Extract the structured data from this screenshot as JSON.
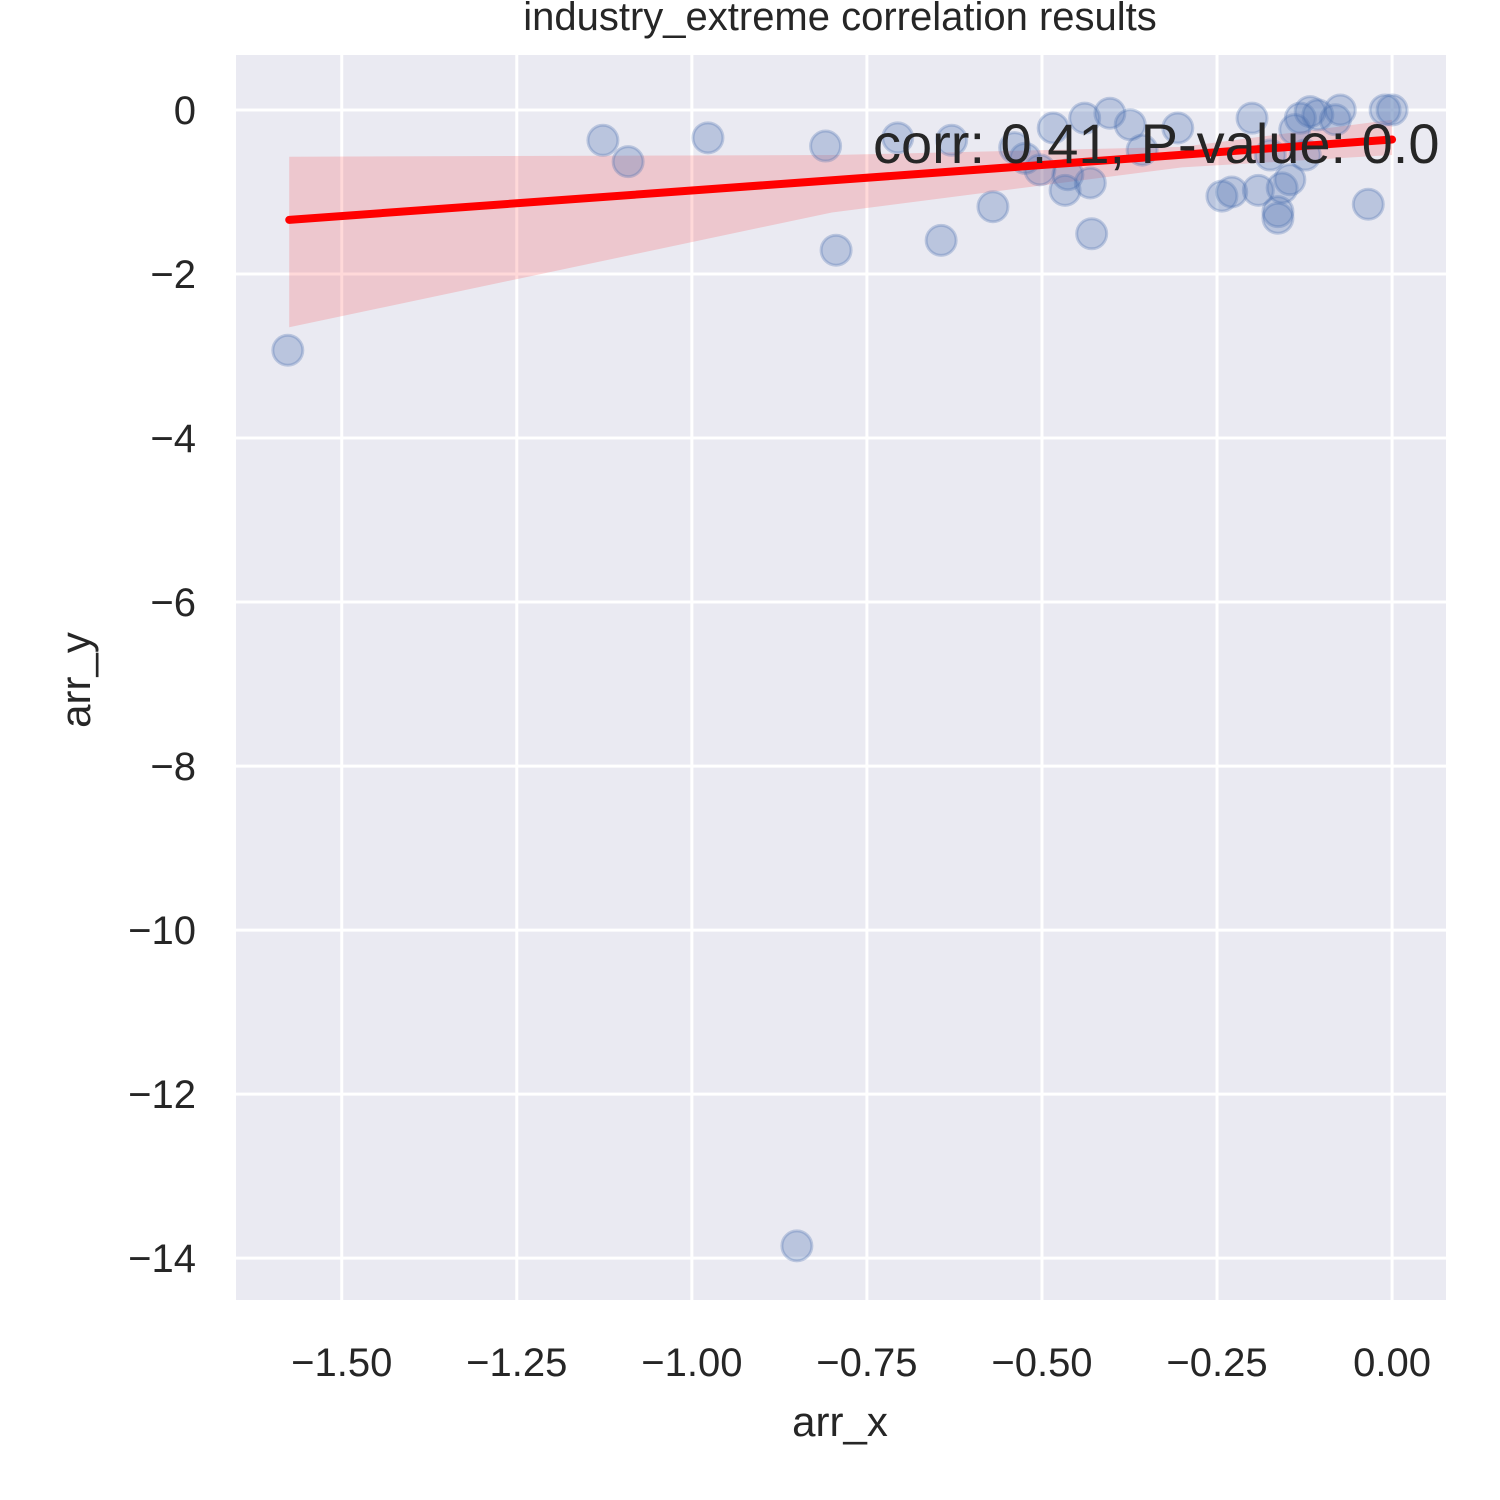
{
  "chart_data": {
    "type": "scatter",
    "title": "industry_extreme correlation results",
    "xlabel": "arr_x",
    "ylabel": "arr_y",
    "annotation": "corr: 0.41, P-value: 0.0",
    "x": [
      -1.577,
      -1.127,
      -1.091,
      -0.977,
      -0.809,
      -0.794,
      -0.85,
      -0.706,
      -0.629,
      -0.644,
      -0.57,
      -0.539,
      -0.524,
      -0.503,
      -0.484,
      -0.467,
      -0.463,
      -0.439,
      -0.431,
      -0.429,
      -0.403,
      -0.374,
      -0.357,
      -0.306,
      -0.243,
      -0.229,
      -0.2,
      -0.191,
      -0.174,
      -0.163,
      -0.163,
      -0.157,
      -0.146,
      -0.139,
      -0.131,
      -0.124,
      -0.117,
      -0.106,
      -0.081,
      -0.074,
      -0.034,
      -0.01,
      0.0
    ],
    "values": [
      -2.93,
      -0.37,
      -0.63,
      -0.34,
      -0.44,
      -1.71,
      -13.85,
      -0.34,
      -0.37,
      -1.59,
      -1.18,
      -0.46,
      -0.59,
      -0.73,
      -0.22,
      -0.98,
      -0.79,
      -0.1,
      -0.89,
      -1.51,
      -0.04,
      -0.18,
      -0.49,
      -0.22,
      -1.05,
      -1.0,
      -0.1,
      -0.98,
      -0.55,
      -1.24,
      -1.32,
      -0.95,
      -0.85,
      -0.24,
      -0.1,
      -0.55,
      -0.02,
      -0.06,
      -0.12,
      0.0,
      -1.15,
      0.0,
      0.0
    ],
    "color": "#4c72b0",
    "regression": {
      "color": "#ff0000",
      "x": [
        -1.575,
        0.0
      ],
      "values": [
        -1.34,
        -0.36
      ]
    },
    "confidence_band": {
      "x": [
        -1.575,
        -0.8,
        -0.3,
        0.0
      ],
      "upper": [
        -0.57,
        -0.55,
        -0.45,
        -0.12
      ],
      "lower": [
        -2.65,
        -1.25,
        -0.7,
        -0.55
      ]
    },
    "xlim": [
      -1.651,
      0.077
    ],
    "ylim": [
      -14.51,
      0.67
    ],
    "xticks": [
      {
        "value": -1.5,
        "label": "−1.50"
      },
      {
        "value": -1.25,
        "label": "−1.25"
      },
      {
        "value": -1.0,
        "label": "−1.00"
      },
      {
        "value": -0.75,
        "label": "−0.75"
      },
      {
        "value": -0.5,
        "label": "−0.50"
      },
      {
        "value": -0.25,
        "label": "−0.25"
      },
      {
        "value": 0.0,
        "label": "0.00"
      }
    ],
    "yticks": [
      0,
      {
        "value": -2,
        "label": "−2"
      },
      {
        "value": -4,
        "label": "−4"
      },
      {
        "value": -6,
        "label": "−6"
      },
      {
        "value": -8,
        "label": "−8"
      },
      {
        "value": -10,
        "label": "−10"
      },
      {
        "value": -12,
        "label": "−12"
      },
      {
        "value": -14,
        "label": "−14"
      }
    ],
    "grid": true
  }
}
